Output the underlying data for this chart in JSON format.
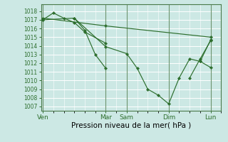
{
  "background_color": "#cce8e4",
  "grid_color": "#ffffff",
  "line_color": "#2d6e2d",
  "marker_color": "#2d6e2d",
  "ylabel_ticks": [
    1007,
    1008,
    1009,
    1010,
    1011,
    1012,
    1013,
    1014,
    1015,
    1016,
    1017,
    1018
  ],
  "ylim": [
    1006.5,
    1018.8
  ],
  "xlabel": "Pression niveau de la mer( hPa )",
  "xtick_labels": [
    "Ven",
    "Mar",
    "Sam",
    "Dim",
    "Lun"
  ],
  "xtick_positions": [
    0,
    36,
    48,
    72,
    96
  ],
  "xlim": [
    -1,
    102
  ],
  "series": [
    {
      "x": [
        0,
        18,
        36,
        48,
        54,
        60,
        66,
        72,
        78,
        84,
        90,
        96
      ],
      "y": [
        1017.0,
        1017.2,
        1013.9,
        1013.1,
        1011.4,
        1009.0,
        1008.3,
        1007.3,
        1010.3,
        1012.5,
        1012.2,
        1014.7
      ]
    },
    {
      "x": [
        0,
        36,
        96
      ],
      "y": [
        1017.2,
        1016.3,
        1015.0
      ]
    },
    {
      "x": [
        0,
        6,
        12,
        18,
        24,
        36
      ],
      "y": [
        1017.0,
        1017.8,
        1017.2,
        1016.7,
        1015.6,
        1014.3
      ]
    },
    {
      "x": [
        18,
        24,
        30,
        36
      ],
      "y": [
        1017.2,
        1015.8,
        1013.0,
        1011.4
      ]
    },
    {
      "x": [
        84,
        90,
        96
      ],
      "y": [
        1010.3,
        1012.5,
        1014.6
      ]
    },
    {
      "x": [
        90,
        96
      ],
      "y": [
        1012.2,
        1011.5
      ]
    }
  ],
  "vline_positions": [
    0,
    36,
    48,
    72,
    96
  ],
  "vline_color": "#4a7a4a",
  "tick_color": "#2d6e2d",
  "label_fontsize": 6.5,
  "xlabel_fontsize": 7.5,
  "ytick_fontsize": 5.5
}
